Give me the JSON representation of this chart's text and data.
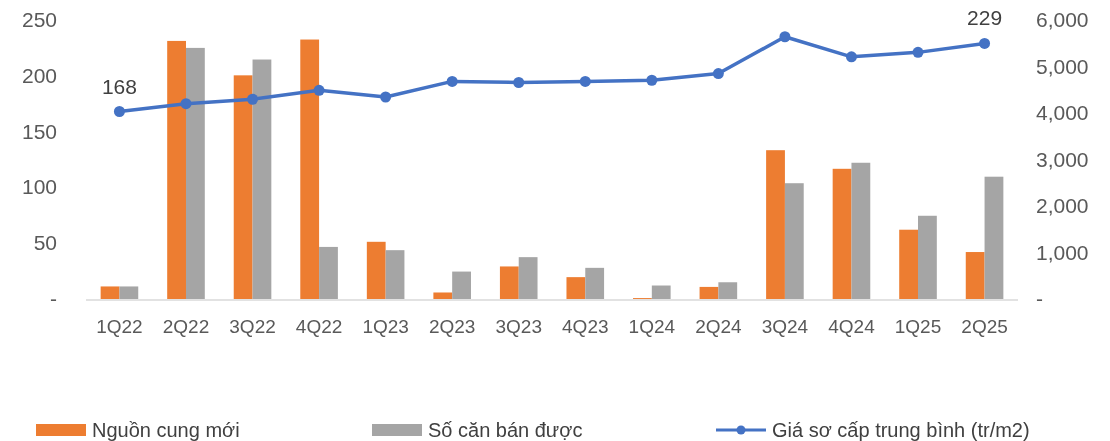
{
  "chart_data": {
    "type": "bar",
    "categories": [
      "1Q22",
      "2Q22",
      "3Q22",
      "4Q22",
      "1Q23",
      "2Q23",
      "3Q23",
      "4Q23",
      "1Q24",
      "2Q24",
      "3Q24",
      "4Q24",
      "1Q25",
      "2Q25"
    ],
    "series": [
      {
        "name": "Nguồn cung mới",
        "color": "#ed7d31",
        "axis": "y2",
        "values": [
          270,
          5550,
          4810,
          5580,
          1230,
          140,
          700,
          470,
          20,
          260,
          3200,
          2800,
          1490,
          1010
        ]
      },
      {
        "name": "Số căn bán được",
        "color": "#a5a5a5",
        "axis": "y2",
        "values": [
          270,
          5400,
          5150,
          1120,
          1050,
          590,
          900,
          670,
          290,
          360,
          2490,
          2930,
          1790,
          2630
        ]
      },
      {
        "name": "Giá sơ cấp trung bình (tr/m2)",
        "type": "line",
        "color": "#4472c4",
        "marker": "circle",
        "values": [
          168,
          175,
          179,
          187,
          181,
          195,
          194,
          195,
          196,
          202,
          235,
          217,
          221,
          229
        ],
        "value_labels": [
          "168",
          null,
          null,
          null,
          null,
          null,
          null,
          null,
          null,
          null,
          null,
          null,
          null,
          "229"
        ]
      }
    ],
    "ylim": [
      0,
      250
    ],
    "yticks": [
      {
        "value": 0,
        "label": "-"
      },
      50,
      100,
      150,
      200,
      250
    ],
    "y2lim": [
      0,
      6000
    ],
    "y2ticks": [
      {
        "value": 0,
        "label": "-"
      },
      {
        "value": 1000,
        "label": "1,000"
      },
      {
        "value": 2000,
        "label": "2,000"
      },
      {
        "value": 3000,
        "label": "3,000"
      },
      {
        "value": 4000,
        "label": "4,000"
      },
      {
        "value": 5000,
        "label": "5,000"
      },
      {
        "value": 6000,
        "label": "6,000"
      }
    ],
    "grid": false,
    "legend": "bottom"
  }
}
